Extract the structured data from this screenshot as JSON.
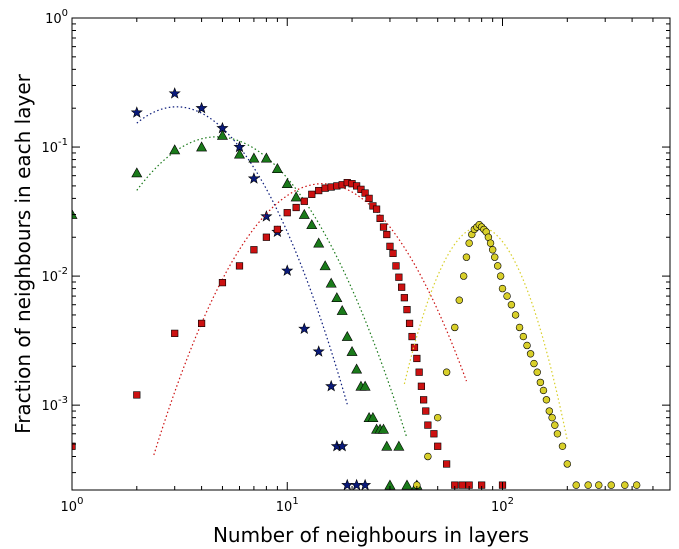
{
  "chart_data": {
    "type": "scatter",
    "title": "",
    "xlabel": "Number of neighbours in layers",
    "ylabel": "Fraction of neighbours in each layer",
    "xscale": "log",
    "yscale": "log",
    "xlim": [
      1,
      600
    ],
    "ylim": [
      0.00022,
      1
    ],
    "grid": false,
    "legend": "none",
    "x_ticks": [
      {
        "base": "10",
        "exp": "0",
        "value": 1
      },
      {
        "base": "10",
        "exp": "1",
        "value": 10
      },
      {
        "base": "10",
        "exp": "2",
        "value": 100
      }
    ],
    "y_ticks": [
      {
        "base": "10",
        "exp": "0",
        "value": 1
      },
      {
        "base": "10",
        "exp": "-1",
        "value": 0.1
      },
      {
        "base": "10",
        "exp": "-2",
        "value": 0.01
      },
      {
        "base": "10",
        "exp": "-3",
        "value": 0.001
      }
    ],
    "series": [
      {
        "marker": "star",
        "color": "#0a1a7a",
        "points": [
          [
            2,
            0.185
          ],
          [
            3,
            0.26
          ],
          [
            4,
            0.2
          ],
          [
            5,
            0.14
          ],
          [
            6,
            0.1
          ],
          [
            7,
            0.057
          ],
          [
            8,
            0.029
          ],
          [
            9,
            0.022
          ],
          [
            10,
            0.011
          ],
          [
            12,
            0.0039
          ],
          [
            14,
            0.0026
          ],
          [
            16,
            0.0014
          ],
          [
            17,
            0.00048
          ],
          [
            18,
            0.00048
          ],
          [
            19,
            0.00024
          ],
          [
            21,
            0.00024
          ],
          [
            23,
            0.00024
          ]
        ],
        "fit": {
          "curve": "lognormal",
          "mu": 1.12,
          "sigma": 0.56,
          "amp": 0.205,
          "x_range": [
            2,
            19
          ]
        }
      },
      {
        "marker": "triangle",
        "color": "#1a7a1a",
        "points": [
          [
            1,
            0.03
          ],
          [
            2,
            0.063
          ],
          [
            3,
            0.095
          ],
          [
            4,
            0.1
          ],
          [
            5,
            0.123
          ],
          [
            6,
            0.088
          ],
          [
            7,
            0.082
          ],
          [
            8,
            0.082
          ],
          [
            9,
            0.068
          ],
          [
            10,
            0.052
          ],
          [
            11,
            0.041
          ],
          [
            12,
            0.03
          ],
          [
            13,
            0.025
          ],
          [
            14,
            0.018
          ],
          [
            15,
            0.012
          ],
          [
            16,
            0.0088
          ],
          [
            17,
            0.0068
          ],
          [
            18,
            0.0054
          ],
          [
            19,
            0.0034
          ],
          [
            20,
            0.0026
          ],
          [
            21,
            0.0019
          ],
          [
            22,
            0.0014
          ],
          [
            23,
            0.0014
          ],
          [
            24,
            0.0008
          ],
          [
            25,
            0.0008
          ],
          [
            26,
            0.00065
          ],
          [
            27,
            0.00065
          ],
          [
            28,
            0.00065
          ],
          [
            29,
            0.00048
          ],
          [
            30,
            0.00024
          ],
          [
            33,
            0.00048
          ],
          [
            36,
            0.00024
          ],
          [
            40,
            0.00024
          ]
        ],
        "fit": {
          "curve": "lognormal",
          "mu": 1.55,
          "sigma": 0.62,
          "amp": 0.12,
          "x_range": [
            2,
            36
          ]
        }
      },
      {
        "marker": "square",
        "color": "#cc1111",
        "points": [
          [
            1,
            0.00048
          ],
          [
            2,
            0.0012
          ],
          [
            3,
            0.0036
          ],
          [
            4,
            0.0043
          ],
          [
            5,
            0.0089
          ],
          [
            6,
            0.012
          ],
          [
            7,
            0.016
          ],
          [
            8,
            0.02
          ],
          [
            9,
            0.023
          ],
          [
            10,
            0.031
          ],
          [
            11,
            0.034
          ],
          [
            12,
            0.038
          ],
          [
            13,
            0.043
          ],
          [
            14,
            0.046
          ],
          [
            15,
            0.048
          ],
          [
            16,
            0.049
          ],
          [
            17,
            0.05
          ],
          [
            18,
            0.051
          ],
          [
            19,
            0.053
          ],
          [
            20,
            0.052
          ],
          [
            21,
            0.05
          ],
          [
            22,
            0.047
          ],
          [
            23,
            0.044
          ],
          [
            24,
            0.04
          ],
          [
            25,
            0.035
          ],
          [
            26,
            0.033
          ],
          [
            27,
            0.028
          ],
          [
            28,
            0.024
          ],
          [
            29,
            0.021
          ],
          [
            30,
            0.017
          ],
          [
            31,
            0.015
          ],
          [
            32,
            0.012
          ],
          [
            33,
            0.0098
          ],
          [
            34,
            0.0082
          ],
          [
            35,
            0.0068
          ],
          [
            36,
            0.0055
          ],
          [
            37,
            0.0043
          ],
          [
            38,
            0.0034
          ],
          [
            39,
            0.0028
          ],
          [
            40,
            0.0023
          ],
          [
            41,
            0.0018
          ],
          [
            42,
            0.0014
          ],
          [
            43,
            0.0011
          ],
          [
            44,
            0.0009
          ],
          [
            45,
            0.0007
          ],
          [
            48,
            0.0006
          ],
          [
            50,
            0.00048
          ],
          [
            55,
            0.00035
          ],
          [
            60,
            0.00024
          ],
          [
            65,
            0.00024
          ],
          [
            70,
            0.00024
          ],
          [
            80,
            0.00024
          ],
          [
            100,
            0.00024
          ]
        ],
        "fit": {
          "curve": "lognormal",
          "mu": 2.68,
          "sigma": 0.58,
          "amp": 0.052,
          "x_range": [
            2.4,
            68
          ]
        }
      },
      {
        "marker": "circle",
        "color": "#d8cf2a",
        "points": [
          [
            40,
            0.00024
          ],
          [
            45,
            0.0004
          ],
          [
            50,
            0.0008
          ],
          [
            55,
            0.0018
          ],
          [
            60,
            0.004
          ],
          [
            63,
            0.0065
          ],
          [
            66,
            0.01
          ],
          [
            68,
            0.014
          ],
          [
            70,
            0.018
          ],
          [
            72,
            0.021
          ],
          [
            74,
            0.023
          ],
          [
            76,
            0.024
          ],
          [
            78,
            0.025
          ],
          [
            80,
            0.024
          ],
          [
            82,
            0.023
          ],
          [
            84,
            0.022
          ],
          [
            86,
            0.02
          ],
          [
            88,
            0.018
          ],
          [
            90,
            0.016
          ],
          [
            92,
            0.014
          ],
          [
            95,
            0.012
          ],
          [
            98,
            0.01
          ],
          [
            100,
            0.008
          ],
          [
            105,
            0.007
          ],
          [
            110,
            0.006
          ],
          [
            115,
            0.005
          ],
          [
            120,
            0.004
          ],
          [
            125,
            0.0034
          ],
          [
            130,
            0.0029
          ],
          [
            135,
            0.0025
          ],
          [
            140,
            0.0021
          ],
          [
            145,
            0.0018
          ],
          [
            150,
            0.0015
          ],
          [
            155,
            0.0013
          ],
          [
            160,
            0.0011
          ],
          [
            165,
            0.0009
          ],
          [
            170,
            0.0008
          ],
          [
            175,
            0.0007
          ],
          [
            180,
            0.0006
          ],
          [
            190,
            0.00048
          ],
          [
            200,
            0.00035
          ],
          [
            220,
            0.00024
          ],
          [
            250,
            0.00024
          ],
          [
            280,
            0.00024
          ],
          [
            320,
            0.00024
          ],
          [
            370,
            0.00024
          ],
          [
            420,
            0.00024
          ]
        ],
        "fit": {
          "curve": "lognormal",
          "mu": 4.36,
          "sigma": 0.34,
          "amp": 0.024,
          "x_range": [
            35,
            200
          ]
        }
      }
    ]
  }
}
